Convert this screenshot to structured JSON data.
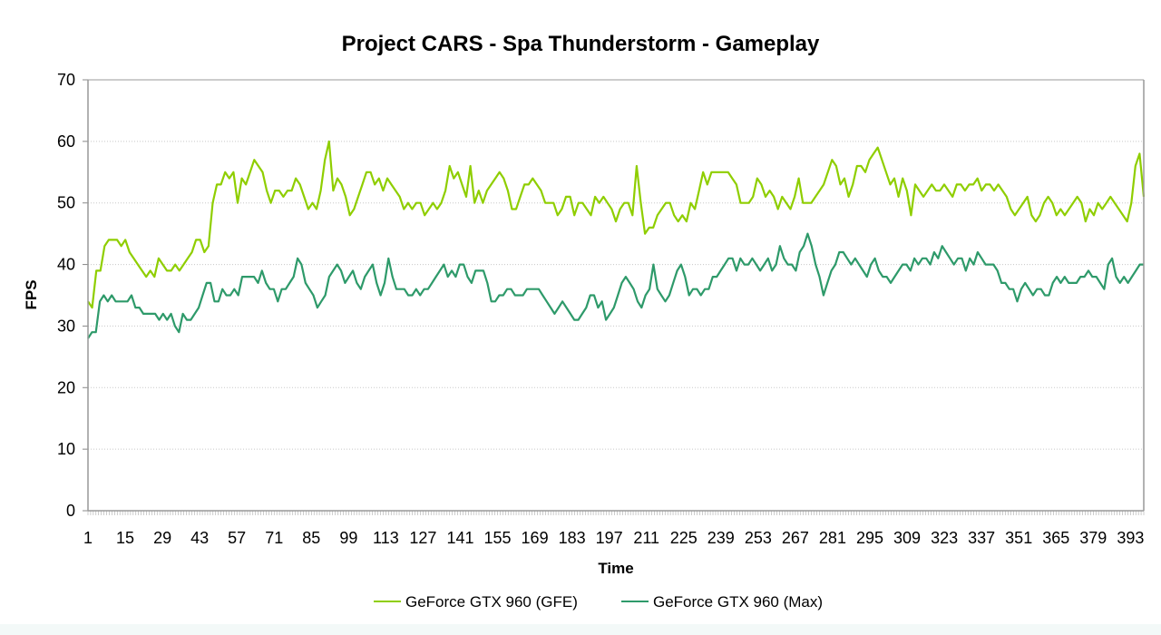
{
  "chart_data": {
    "type": "line",
    "title": "Project CARS - Spa Thunderstorm - Gameplay",
    "xlabel": "Time",
    "ylabel": "FPS",
    "ylim": [
      0,
      70
    ],
    "yticks": [
      0,
      10,
      20,
      30,
      40,
      50,
      60,
      70
    ],
    "xlim": [
      1,
      398
    ],
    "xticks": [
      1,
      15,
      29,
      43,
      57,
      71,
      85,
      99,
      113,
      127,
      141,
      155,
      169,
      183,
      197,
      211,
      225,
      239,
      253,
      267,
      281,
      295,
      309,
      323,
      337,
      351,
      365,
      379,
      393
    ],
    "grid": true,
    "legend_position": "bottom",
    "x_step": 2,
    "x_start": 1,
    "series": [
      {
        "name": "GeForce GTX 960 (GFE)",
        "color": "#8fce00",
        "values": [
          34,
          33,
          39,
          39,
          43,
          44,
          44,
          44,
          43,
          44,
          42,
          41,
          40,
          39,
          38,
          39,
          38,
          41,
          40,
          39,
          39,
          40,
          39,
          40,
          41,
          42,
          44,
          44,
          42,
          43,
          50,
          53,
          53,
          55,
          54,
          55,
          50,
          54,
          53,
          55,
          57,
          56,
          55,
          52,
          50,
          52,
          52,
          51,
          52,
          52,
          54,
          53,
          51,
          49,
          50,
          49,
          52,
          57,
          60,
          52,
          54,
          53,
          51,
          48,
          49,
          51,
          53,
          55,
          55,
          53,
          54,
          52,
          54,
          53,
          52,
          51,
          49,
          50,
          49,
          50,
          50,
          48,
          49,
          50,
          49,
          50,
          52,
          56,
          54,
          55,
          53,
          51,
          56,
          50,
          52,
          50,
          52,
          53,
          54,
          55,
          54,
          52,
          49,
          49,
          51,
          53,
          53,
          54,
          53,
          52,
          50,
          50,
          50,
          48,
          49,
          51,
          51,
          48,
          50,
          50,
          49,
          48,
          51,
          50,
          51,
          50,
          49,
          47,
          49,
          50,
          50,
          48,
          56,
          50,
          45,
          46,
          46,
          48,
          49,
          50,
          50,
          48,
          47,
          48,
          47,
          50,
          49,
          52,
          55,
          53,
          55,
          55,
          55,
          55,
          55,
          54,
          53,
          50,
          50,
          50,
          51,
          54,
          53,
          51,
          52,
          51,
          49,
          51,
          50,
          49,
          51,
          54,
          50,
          50,
          50,
          51,
          52,
          53,
          55,
          57,
          56,
          53,
          54,
          51,
          53,
          56,
          56,
          55,
          57,
          58,
          59,
          57,
          55,
          53,
          54,
          51,
          54,
          52,
          48,
          53,
          52,
          51,
          52,
          53,
          52,
          52,
          53,
          52,
          51,
          53,
          53,
          52,
          53,
          53,
          54,
          52,
          53,
          53,
          52,
          53,
          52,
          51,
          49,
          48,
          49,
          50,
          51,
          48,
          47,
          48,
          50,
          51,
          50,
          48,
          49,
          48,
          49,
          50,
          51,
          50,
          47,
          49,
          48,
          50,
          49,
          50,
          51,
          50,
          49,
          48,
          47,
          50,
          56,
          58,
          51
        ]
      },
      {
        "name": "GeForce GTX 960 (Max)",
        "color": "#2e9a6a",
        "values": [
          28,
          29,
          29,
          34,
          35,
          34,
          35,
          34,
          34,
          34,
          34,
          35,
          33,
          33,
          32,
          32,
          32,
          32,
          31,
          32,
          31,
          32,
          30,
          29,
          32,
          31,
          31,
          32,
          33,
          35,
          37,
          37,
          34,
          34,
          36,
          35,
          35,
          36,
          35,
          38,
          38,
          38,
          38,
          37,
          39,
          37,
          36,
          36,
          34,
          36,
          36,
          37,
          38,
          41,
          40,
          37,
          36,
          35,
          33,
          34,
          35,
          38,
          39,
          40,
          39,
          37,
          38,
          39,
          37,
          36,
          38,
          39,
          40,
          37,
          35,
          37,
          41,
          38,
          36,
          36,
          36,
          35,
          35,
          36,
          35,
          36,
          36,
          37,
          38,
          39,
          40,
          38,
          39,
          38,
          40,
          40,
          38,
          37,
          39,
          39,
          39,
          37,
          34,
          34,
          35,
          35,
          36,
          36,
          35,
          35,
          35,
          36,
          36,
          36,
          36,
          35,
          34,
          33,
          32,
          33,
          34,
          33,
          32,
          31,
          31,
          32,
          33,
          35,
          35,
          33,
          34,
          31,
          32,
          33,
          35,
          37,
          38,
          37,
          36,
          34,
          33,
          35,
          36,
          40,
          36,
          35,
          34,
          35,
          37,
          39,
          40,
          38,
          35,
          36,
          36,
          35,
          36,
          36,
          38,
          38,
          39,
          40,
          41,
          41,
          39,
          41,
          40,
          40,
          41,
          40,
          39,
          40,
          41,
          39,
          40,
          43,
          41,
          40,
          40,
          39,
          42,
          43,
          45,
          43,
          40,
          38,
          35,
          37,
          39,
          40,
          42,
          42,
          41,
          40,
          41,
          40,
          39,
          38,
          40,
          41,
          39,
          38,
          38,
          37,
          38,
          39,
          40,
          40,
          39,
          41,
          40,
          41,
          41,
          40,
          42,
          41,
          43,
          42,
          41,
          40,
          41,
          41,
          39,
          41,
          40,
          42,
          41,
          40,
          40,
          40,
          39,
          37,
          37,
          36,
          36,
          34,
          36,
          37,
          36,
          35,
          36,
          36,
          35,
          35,
          37,
          38,
          37,
          38,
          37,
          37,
          37,
          38,
          38,
          39,
          38,
          38,
          37,
          36,
          40,
          41,
          38,
          37,
          38,
          37,
          38,
          39,
          40,
          40
        ]
      }
    ]
  }
}
